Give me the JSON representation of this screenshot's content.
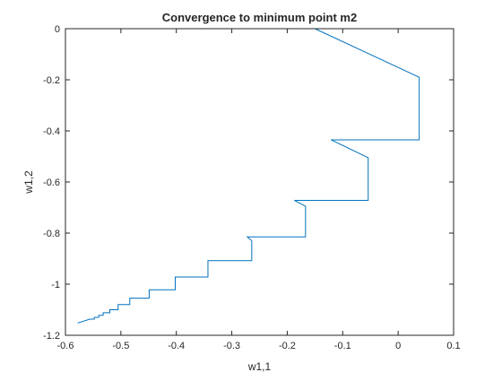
{
  "chart_data": {
    "type": "line",
    "title": "Convergence to minimum point m2",
    "xlabel": "w1,1",
    "ylabel": "w1,2",
    "xlim": [
      -0.6,
      0.1
    ],
    "ylim": [
      -1.2,
      0
    ],
    "grid": false,
    "legend": "none",
    "x_ticks": [
      -0.6,
      -0.5,
      -0.4,
      -0.3,
      -0.2,
      -0.1,
      0,
      0.1
    ],
    "x_tick_labels": [
      "-0.6",
      "-0.5",
      "-0.4",
      "-0.3",
      "-0.2",
      "-0.1",
      "0",
      "0.1"
    ],
    "y_ticks": [
      0,
      -0.2,
      -0.4,
      -0.6,
      -0.8,
      -1,
      -1.2
    ],
    "y_tick_labels": [
      "0",
      "-0.2",
      "-0.4",
      "-0.6",
      "-0.8",
      "-1",
      "-1.2"
    ],
    "series": [
      {
        "color": "#0072bd",
        "x": [
          -0.15,
          0.038,
          0.038,
          -0.121,
          -0.054,
          -0.054,
          -0.187,
          -0.167,
          -0.167,
          -0.272,
          -0.264,
          -0.264,
          -0.343,
          -0.343,
          -0.402,
          -0.402,
          -0.449,
          -0.449,
          -0.484,
          -0.484,
          -0.505,
          -0.505,
          -0.52,
          -0.52,
          -0.532,
          -0.532,
          -0.54,
          -0.54,
          -0.548,
          -0.548,
          -0.556,
          -0.578
        ],
        "y": [
          0,
          -0.19,
          -0.435,
          -0.435,
          -0.505,
          -0.672,
          -0.672,
          -0.695,
          -0.815,
          -0.815,
          -0.83,
          -0.908,
          -0.908,
          -0.972,
          -0.972,
          -1.022,
          -1.022,
          -1.055,
          -1.055,
          -1.08,
          -1.08,
          -1.1,
          -1.1,
          -1.112,
          -1.112,
          -1.122,
          -1.122,
          -1.13,
          -1.13,
          -1.137,
          -1.137,
          -1.152
        ]
      }
    ]
  }
}
